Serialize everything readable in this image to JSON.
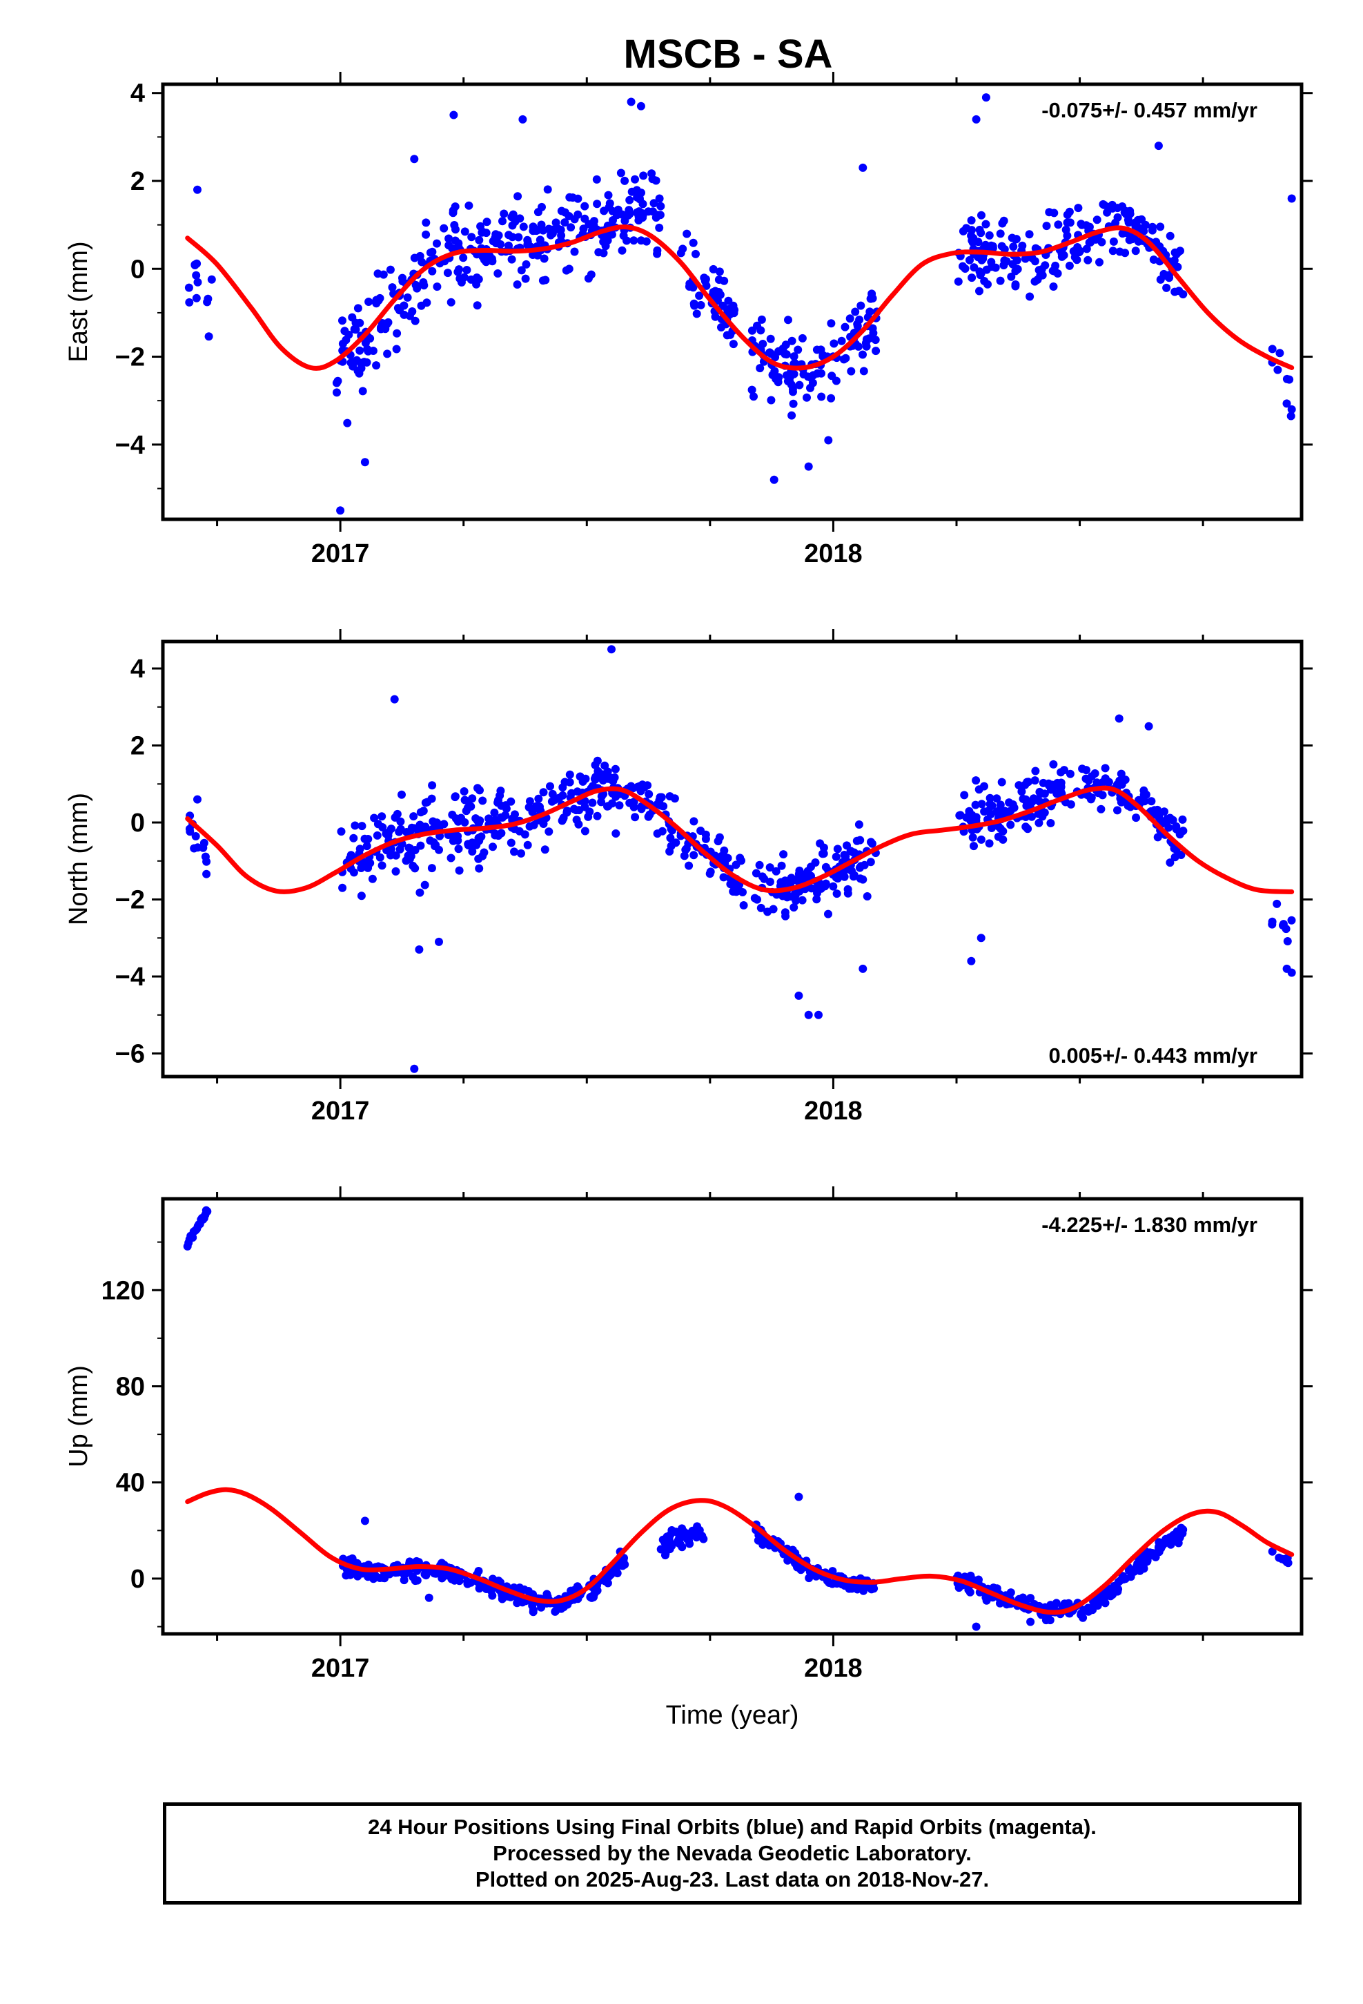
{
  "title": "MSCB - SA",
  "footer": {
    "line1": "24 Hour Positions Using Final Orbits (blue) and Rapid Orbits (magenta).",
    "line2": "Processed by the Nevada Geodetic Laboratory.",
    "line3": "Plotted on 2025-Aug-23. Last data on 2018-Nov-27."
  },
  "colors": {
    "points": "#0000ff",
    "fit": "#ff0000",
    "frame": "#000000"
  },
  "chart_data": [
    {
      "type": "scatter",
      "ylabel": "East (mm)",
      "xlabel": "",
      "xlim": [
        2016.64,
        2018.95
      ],
      "ylim": [
        -5.7,
        4.2
      ],
      "yticks": [
        -4,
        -2,
        0,
        2,
        4
      ],
      "xticks": [
        2017,
        2018
      ],
      "rate_text": "-0.075+/- 0.457 mm/yr",
      "rate_position": "top-right",
      "trend_points": [
        [
          2016.69,
          0.7
        ],
        [
          2016.75,
          0.1
        ],
        [
          2016.82,
          -0.9
        ],
        [
          2016.88,
          -1.8
        ],
        [
          2016.94,
          -2.25
        ],
        [
          2016.99,
          -2.1
        ],
        [
          2017.05,
          -1.5
        ],
        [
          2017.11,
          -0.7
        ],
        [
          2017.17,
          0.0
        ],
        [
          2017.23,
          0.35
        ],
        [
          2017.29,
          0.42
        ],
        [
          2017.35,
          0.4
        ],
        [
          2017.41,
          0.45
        ],
        [
          2017.47,
          0.6
        ],
        [
          2017.53,
          0.85
        ],
        [
          2017.58,
          0.95
        ],
        [
          2017.63,
          0.75
        ],
        [
          2017.69,
          0.15
        ],
        [
          2017.75,
          -0.7
        ],
        [
          2017.82,
          -1.6
        ],
        [
          2017.88,
          -2.15
        ],
        [
          2017.94,
          -2.25
        ],
        [
          2018.0,
          -2.0
        ],
        [
          2018.06,
          -1.4
        ],
        [
          2018.12,
          -0.6
        ],
        [
          2018.18,
          0.1
        ],
        [
          2018.24,
          0.35
        ],
        [
          2018.3,
          0.38
        ],
        [
          2018.36,
          0.33
        ],
        [
          2018.42,
          0.38
        ],
        [
          2018.48,
          0.6
        ],
        [
          2018.54,
          0.85
        ],
        [
          2018.59,
          0.92
        ],
        [
          2018.64,
          0.6
        ],
        [
          2018.7,
          -0.2
        ],
        [
          2018.76,
          -1.0
        ],
        [
          2018.82,
          -1.6
        ],
        [
          2018.88,
          -2.0
        ],
        [
          2018.93,
          -2.25
        ]
      ],
      "point_blocks": [
        {
          "x": [
            2016.69,
            2016.74
          ],
          "amp": 0.9,
          "n": 12,
          "trend_offset": -1.0
        },
        {
          "x": [
            2016.99,
            2017.06
          ],
          "amp": 1.6,
          "n": 40,
          "trend_offset": -0.2
        },
        {
          "x": [
            2017.06,
            2017.3
          ],
          "amp": 1.5,
          "n": 110,
          "trend_offset": 0.0
        },
        {
          "x": [
            2017.3,
            2017.55
          ],
          "amp": 1.4,
          "n": 120,
          "trend_offset": 0.2
        },
        {
          "x": [
            2017.55,
            2017.65
          ],
          "amp": 1.3,
          "n": 55,
          "trend_offset": 0.4
        },
        {
          "x": [
            2017.69,
            2017.8
          ],
          "amp": 1.2,
          "n": 50,
          "trend_offset": 0.0
        },
        {
          "x": [
            2017.83,
            2018.09
          ],
          "amp": 1.3,
          "n": 120,
          "trend_offset": -0.1
        },
        {
          "x": [
            2018.25,
            2018.5
          ],
          "amp": 1.2,
          "n": 120,
          "trend_offset": 0.0
        },
        {
          "x": [
            2018.5,
            2018.71
          ],
          "amp": 1.0,
          "n": 95,
          "trend_offset": 0.1
        },
        {
          "x": [
            2018.89,
            2018.93
          ],
          "amp": 1.2,
          "n": 8,
          "trend_offset": -0.2
        }
      ],
      "outliers": [
        [
          2017.0,
          -5.5
        ],
        [
          2017.05,
          -4.4
        ],
        [
          2017.59,
          3.8
        ],
        [
          2017.61,
          3.7
        ],
        [
          2018.31,
          3.9
        ],
        [
          2018.29,
          3.4
        ],
        [
          2017.88,
          -4.8
        ],
        [
          2017.95,
          -4.5
        ],
        [
          2017.99,
          -3.9
        ],
        [
          2017.23,
          3.5
        ],
        [
          2017.37,
          3.4
        ],
        [
          2018.06,
          2.3
        ],
        [
          2018.66,
          2.8
        ],
        [
          2017.15,
          2.5
        ],
        [
          2016.71,
          1.8
        ],
        [
          2018.93,
          1.6
        ],
        [
          2018.93,
          -3.2
        ]
      ]
    },
    {
      "type": "scatter",
      "ylabel": "North (mm)",
      "xlabel": "",
      "xlim": [
        2016.64,
        2018.95
      ],
      "ylim": [
        -6.6,
        4.7
      ],
      "yticks": [
        -6,
        -4,
        -2,
        0,
        2,
        4
      ],
      "xticks": [
        2017,
        2018
      ],
      "rate_text": "0.005+/- 0.443 mm/yr",
      "rate_position": "bottom-right",
      "trend_points": [
        [
          2016.69,
          0.1
        ],
        [
          2016.75,
          -0.6
        ],
        [
          2016.81,
          -1.4
        ],
        [
          2016.87,
          -1.78
        ],
        [
          2016.93,
          -1.7
        ],
        [
          2016.99,
          -1.3
        ],
        [
          2017.05,
          -0.85
        ],
        [
          2017.11,
          -0.5
        ],
        [
          2017.17,
          -0.3
        ],
        [
          2017.23,
          -0.2
        ],
        [
          2017.29,
          -0.15
        ],
        [
          2017.35,
          -0.05
        ],
        [
          2017.41,
          0.2
        ],
        [
          2017.47,
          0.55
        ],
        [
          2017.52,
          0.82
        ],
        [
          2017.57,
          0.85
        ],
        [
          2017.62,
          0.5
        ],
        [
          2017.68,
          -0.1
        ],
        [
          2017.74,
          -0.8
        ],
        [
          2017.8,
          -1.4
        ],
        [
          2017.86,
          -1.75
        ],
        [
          2017.92,
          -1.7
        ],
        [
          2017.98,
          -1.4
        ],
        [
          2018.04,
          -1.0
        ],
        [
          2018.1,
          -0.6
        ],
        [
          2018.16,
          -0.3
        ],
        [
          2018.22,
          -0.2
        ],
        [
          2018.28,
          -0.1
        ],
        [
          2018.34,
          0.05
        ],
        [
          2018.4,
          0.3
        ],
        [
          2018.46,
          0.6
        ],
        [
          2018.52,
          0.85
        ],
        [
          2018.57,
          0.85
        ],
        [
          2018.62,
          0.4
        ],
        [
          2018.68,
          -0.35
        ],
        [
          2018.74,
          -1.0
        ],
        [
          2018.8,
          -1.45
        ],
        [
          2018.86,
          -1.75
        ],
        [
          2018.93,
          -1.8
        ]
      ],
      "point_blocks": [
        {
          "x": [
            2016.69,
            2016.73
          ],
          "amp": 0.9,
          "n": 12,
          "trend_offset": -0.5
        },
        {
          "x": [
            2017.0,
            2017.3
          ],
          "amp": 1.6,
          "n": 150,
          "trend_offset": 0.0
        },
        {
          "x": [
            2017.3,
            2017.56
          ],
          "amp": 1.2,
          "n": 130,
          "trend_offset": 0.0
        },
        {
          "x": [
            2017.56,
            2017.82
          ],
          "amp": 1.0,
          "n": 110,
          "trend_offset": 0.0
        },
        {
          "x": [
            2017.84,
            2018.09
          ],
          "amp": 1.3,
          "n": 120,
          "trend_offset": 0.0
        },
        {
          "x": [
            2018.25,
            2018.5
          ],
          "amp": 1.1,
          "n": 120,
          "trend_offset": 0.2
        },
        {
          "x": [
            2018.5,
            2018.71
          ],
          "amp": 0.9,
          "n": 95,
          "trend_offset": 0.1
        },
        {
          "x": [
            2018.89,
            2018.93
          ],
          "amp": 1.0,
          "n": 8,
          "trend_offset": -0.8
        }
      ],
      "outliers": [
        [
          2017.11,
          3.2
        ],
        [
          2017.55,
          4.5
        ],
        [
          2017.15,
          -6.4
        ],
        [
          2017.16,
          -3.3
        ],
        [
          2017.2,
          -3.1
        ],
        [
          2017.95,
          -5.0
        ],
        [
          2017.97,
          -5.0
        ],
        [
          2017.93,
          -4.5
        ],
        [
          2018.28,
          -3.6
        ],
        [
          2018.3,
          -3.0
        ],
        [
          2018.06,
          -3.8
        ],
        [
          2018.64,
          2.5
        ],
        [
          2018.58,
          2.7
        ],
        [
          2018.93,
          -3.9
        ],
        [
          2018.92,
          -3.8
        ],
        [
          2016.71,
          0.6
        ]
      ]
    },
    {
      "type": "scatter",
      "ylabel": "Up (mm)",
      "xlabel": "Time (year)",
      "xlim": [
        2016.64,
        2018.95
      ],
      "ylim": [
        -23,
        158
      ],
      "yticks": [
        0,
        40,
        80,
        120
      ],
      "xticks": [
        2017,
        2018
      ],
      "rate_text": "-4.225+/- 1.830 mm/yr",
      "rate_position": "top-right",
      "trend_points": [
        [
          2016.69,
          32
        ],
        [
          2016.73,
          35.5
        ],
        [
          2016.77,
          37
        ],
        [
          2016.81,
          35
        ],
        [
          2016.86,
          29
        ],
        [
          2016.92,
          19
        ],
        [
          2016.98,
          9
        ],
        [
          2017.04,
          4
        ],
        [
          2017.1,
          4
        ],
        [
          2017.16,
          5
        ],
        [
          2017.22,
          4
        ],
        [
          2017.28,
          0
        ],
        [
          2017.34,
          -5
        ],
        [
          2017.4,
          -9
        ],
        [
          2017.45,
          -9
        ],
        [
          2017.5,
          -4
        ],
        [
          2017.55,
          6
        ],
        [
          2017.61,
          19
        ],
        [
          2017.67,
          29
        ],
        [
          2017.73,
          32.5
        ],
        [
          2017.78,
          30
        ],
        [
          2017.84,
          22
        ],
        [
          2017.9,
          12
        ],
        [
          2017.96,
          4
        ],
        [
          2018.02,
          -0.5
        ],
        [
          2018.08,
          -1.5
        ],
        [
          2018.14,
          0
        ],
        [
          2018.2,
          1
        ],
        [
          2018.26,
          -1
        ],
        [
          2018.32,
          -6
        ],
        [
          2018.38,
          -11
        ],
        [
          2018.44,
          -14
        ],
        [
          2018.49,
          -12
        ],
        [
          2018.55,
          -3
        ],
        [
          2018.61,
          9
        ],
        [
          2018.67,
          20
        ],
        [
          2018.73,
          27
        ],
        [
          2018.78,
          27.5
        ],
        [
          2018.83,
          22
        ],
        [
          2018.88,
          15
        ],
        [
          2018.93,
          10
        ]
      ],
      "point_blocks": [
        {
          "x": [
            2017.0,
            2017.5
          ],
          "amp": 6,
          "n": 240,
          "trend_offset": -1.0
        },
        {
          "x": [
            2017.5,
            2017.58
          ],
          "amp": 6,
          "n": 50,
          "trend_offset": -3.0
        },
        {
          "x": [
            2017.65,
            2017.74
          ],
          "amp": 6,
          "n": 50,
          "trend_offset": -13.0
        },
        {
          "x": [
            2017.84,
            2018.09
          ],
          "amp": 5,
          "n": 130,
          "trend_offset": -1.0
        },
        {
          "x": [
            2018.25,
            2018.5
          ],
          "amp": 5,
          "n": 130,
          "trend_offset": 0.0
        },
        {
          "x": [
            2018.5,
            2018.71
          ],
          "amp": 5,
          "n": 110,
          "trend_offset": -5.0
        },
        {
          "x": [
            2018.89,
            2018.93
          ],
          "amp": 3,
          "n": 8,
          "trend_offset": -3.0
        }
      ],
      "early_cluster": {
        "x": [
          2016.69,
          2016.73
        ],
        "y": [
          139,
          153
        ],
        "n": 20
      },
      "outliers": [
        [
          2017.05,
          24
        ],
        [
          2017.93,
          34
        ],
        [
          2017.18,
          -8
        ],
        [
          2018.29,
          -20
        ],
        [
          2018.4,
          -18
        ]
      ]
    }
  ]
}
